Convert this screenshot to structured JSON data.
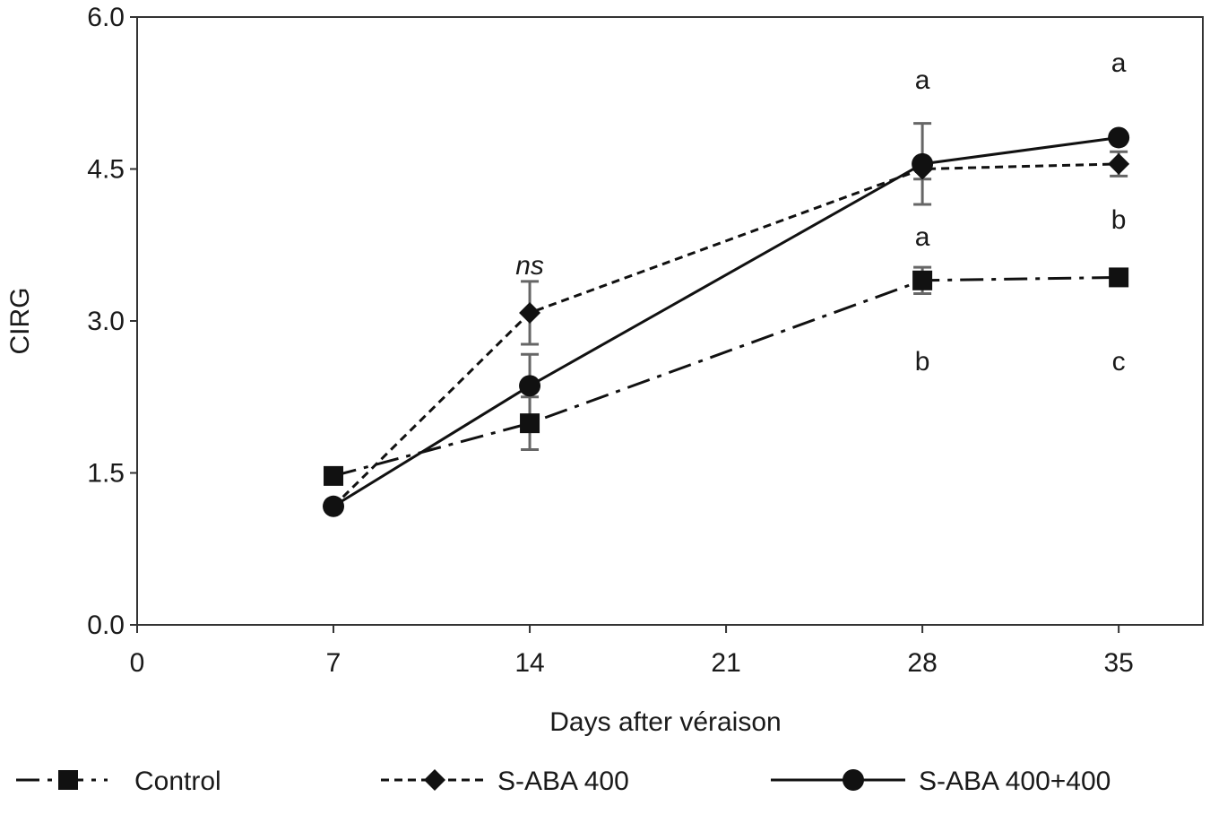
{
  "chart_data": {
    "type": "line",
    "xlabel": "Days after véraison",
    "ylabel": "CIRG",
    "xlim": [
      0,
      38
    ],
    "ylim": [
      0,
      6
    ],
    "xticks": [
      0,
      7,
      14,
      21,
      28,
      35
    ],
    "yticks": [
      0,
      1.5,
      3,
      4.5,
      6
    ],
    "ytick_labels": [
      "0.0",
      "1.5",
      "3.0",
      "4.5",
      "6.0"
    ],
    "grid": false,
    "legend_position": "bottom",
    "series": [
      {
        "name": "Control",
        "marker": "square",
        "line_style": "dash-dot",
        "x": [
          7,
          14,
          28,
          35
        ],
        "y": [
          1.47,
          1.99,
          3.4,
          3.43
        ],
        "error": [
          0,
          0.26,
          0.13,
          0.07
        ]
      },
      {
        "name": "S-ABA 400",
        "marker": "diamond",
        "line_style": "dashed",
        "x": [
          7,
          14,
          28,
          35
        ],
        "y": [
          1.17,
          3.08,
          4.5,
          4.55
        ],
        "error": [
          0,
          0.31,
          0.1,
          0.12
        ]
      },
      {
        "name": "S-ABA 400+400",
        "marker": "circle",
        "line_style": "solid",
        "x": [
          7,
          14,
          28,
          35
        ],
        "y": [
          1.17,
          2.36,
          4.55,
          4.81
        ],
        "error": [
          0,
          0.31,
          0.4,
          0
        ]
      }
    ],
    "annotations": [
      {
        "text": "ns",
        "italic": true,
        "x": 14,
        "y": 3.55
      },
      {
        "text": "a",
        "x": 28,
        "y": 5.38
      },
      {
        "text": "a",
        "x": 28,
        "y": 3.83
      },
      {
        "text": "b",
        "x": 28,
        "y": 2.6
      },
      {
        "text": "a",
        "x": 35,
        "y": 5.55
      },
      {
        "text": "b",
        "x": 35,
        "y": 4.0
      },
      {
        "text": "c",
        "x": 35,
        "y": 2.6
      }
    ]
  }
}
